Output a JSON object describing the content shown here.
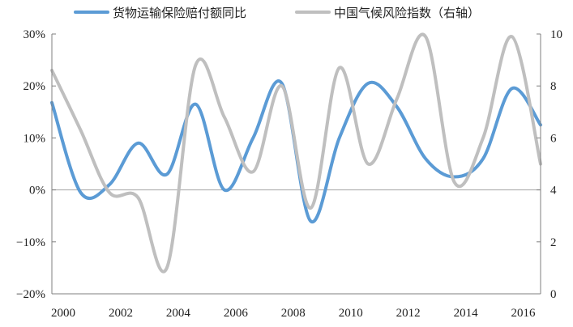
{
  "chart_data": {
    "type": "line",
    "x": [
      2000,
      2001,
      2002,
      2003,
      2004,
      2005,
      2006,
      2007,
      2008,
      2009,
      2010,
      2011,
      2012,
      2013,
      2014,
      2015,
      2016,
      2017
    ],
    "x_tick_labels": [
      "2000",
      "2002",
      "2004",
      "2006",
      "2008",
      "2010",
      "2012",
      "2014",
      "2016"
    ],
    "x_tick_values": [
      2000,
      2002,
      2004,
      2006,
      2008,
      2010,
      2012,
      2014,
      2016
    ],
    "xlim": [
      2000,
      2017
    ],
    "y_left": {
      "lim": [
        -20,
        30
      ],
      "ticks": [
        -20,
        -10,
        0,
        10,
        20,
        30
      ],
      "tick_labels": [
        "−20%",
        "−10%",
        "0%",
        "10%",
        "20%",
        "30%"
      ]
    },
    "y_right": {
      "lim": [
        0,
        10
      ],
      "ticks": [
        0,
        2,
        4,
        6,
        8,
        10
      ],
      "tick_labels": [
        "0",
        "2",
        "4",
        "6",
        "8",
        "10"
      ]
    },
    "legend_position": "top",
    "grid": false,
    "series": [
      {
        "name": "货物运输保险赔付额同比",
        "axis": "left",
        "color": "#5b9bd5",
        "values": [
          16.8,
          -0.5,
          1.0,
          9.0,
          3.0,
          16.5,
          0.0,
          10.0,
          20.5,
          -6.0,
          10.0,
          20.5,
          16.0,
          6.0,
          2.5,
          6.0,
          19.5,
          12.5
        ]
      },
      {
        "name": "中国气候风险指数（右轴）",
        "axis": "right",
        "color": "#bfbfbf",
        "values": [
          8.6,
          6.3,
          3.9,
          3.7,
          1.0,
          8.8,
          6.8,
          4.7,
          8.0,
          3.3,
          8.7,
          5.0,
          7.5,
          9.9,
          4.3,
          6.0,
          9.9,
          5.0
        ]
      }
    ]
  }
}
